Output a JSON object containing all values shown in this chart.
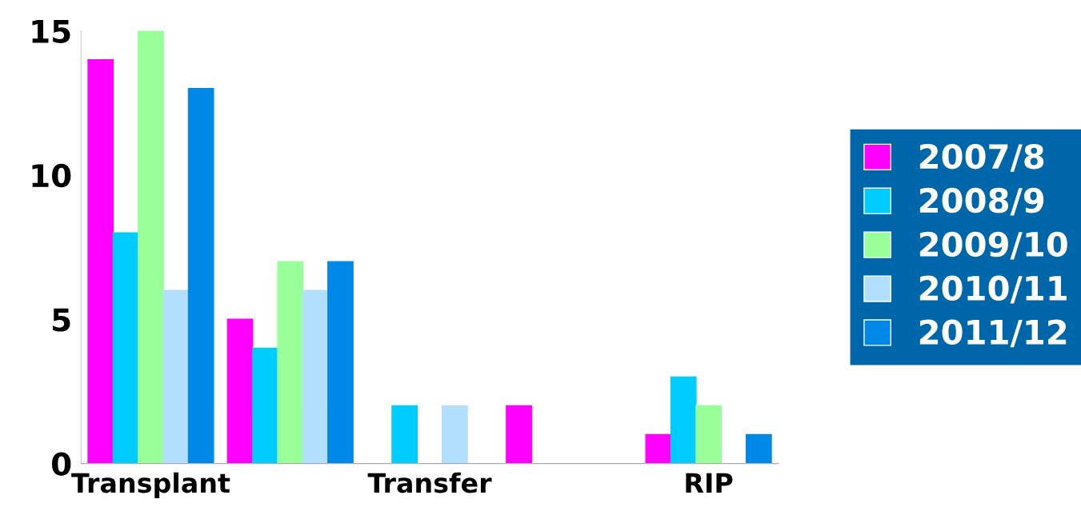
{
  "chart_data": {
    "type": "bar",
    "categories": [
      "Transplant",
      null,
      "Transfer",
      null,
      "RIP"
    ],
    "series": [
      {
        "name": "2007/8",
        "color": "#ff00ff",
        "values": [
          14,
          5,
          0,
          2,
          1
        ]
      },
      {
        "name": "2008/9",
        "color": "#00ccff",
        "values": [
          8,
          4,
          2,
          0,
          3
        ]
      },
      {
        "name": "2009/10",
        "color": "#99ff99",
        "values": [
          15,
          7,
          0,
          0,
          2
        ]
      },
      {
        "name": "2010/11",
        "color": "#b3dfff",
        "values": [
          6,
          6,
          2,
          0,
          0
        ]
      },
      {
        "name": "2011/12",
        "color": "#0088e8",
        "values": [
          13,
          7,
          0,
          0,
          1
        ]
      }
    ],
    "ylim": [
      0,
      15
    ],
    "yticks": [
      0,
      5,
      10,
      15
    ],
    "grid": false,
    "legend": "right"
  }
}
